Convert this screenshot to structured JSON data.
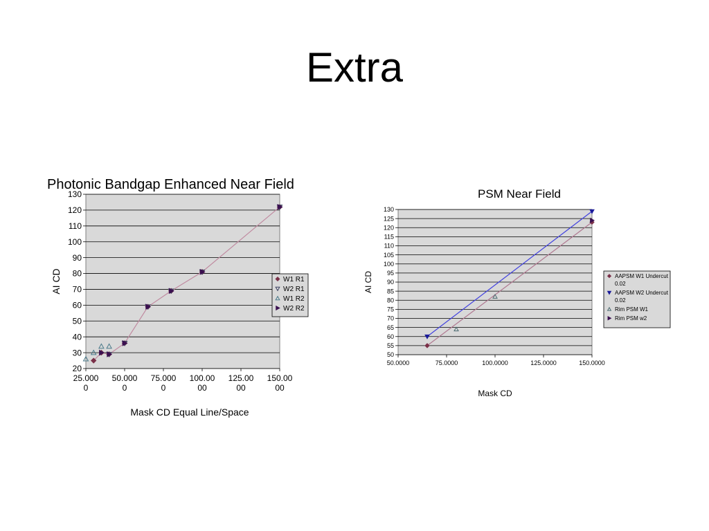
{
  "slide": {
    "title": "Extra"
  },
  "chart_data": [
    {
      "type": "line",
      "title": "Photonic Bandgap Enhanced Near Field",
      "xlabel": "Mask CD Equal Line/Space",
      "ylabel": "AI CD",
      "xlim": [
        25,
        150
      ],
      "ylim": [
        20,
        130
      ],
      "x_ticks": [
        {
          "value": 25,
          "line1": "25.000",
          "line2": "0"
        },
        {
          "value": 50,
          "line1": "50.000",
          "line2": "0"
        },
        {
          "value": 75,
          "line1": "75.000",
          "line2": "0"
        },
        {
          "value": 100,
          "line1": "100.00",
          "line2": "00"
        },
        {
          "value": 125,
          "line1": "125.00",
          "line2": "00"
        },
        {
          "value": 150,
          "line1": "150.00",
          "line2": "00"
        }
      ],
      "y_ticks": [
        20,
        30,
        40,
        50,
        60,
        70,
        80,
        90,
        100,
        110,
        120,
        130
      ],
      "grid": "horizontal",
      "plot_background": "#d9d9d9",
      "legend_position": "right",
      "series": [
        {
          "name": "W1 R1",
          "marker": "diamond",
          "color": "#7a3048",
          "line": true,
          "line_color": "#c08aa0",
          "x": [
            30,
            35,
            40,
            50,
            65,
            80,
            100,
            150
          ],
          "y": [
            25,
            30,
            29,
            36,
            59,
            69,
            81,
            122
          ]
        },
        {
          "name": "W2 R1",
          "marker": "triangle-down",
          "color": "#3a4060",
          "line": false,
          "x": [
            40,
            50,
            65,
            80,
            100,
            150
          ],
          "y": [
            29,
            36,
            59,
            69,
            81,
            122
          ]
        },
        {
          "name": "W1 R2",
          "marker": "triangle-up",
          "color": "#4a7a8a",
          "line": false,
          "x": [
            25,
            30,
            35,
            40
          ],
          "y": [
            26,
            30,
            34,
            34
          ]
        },
        {
          "name": "W2 R2",
          "marker": "triangle-right",
          "color": "#3a1050",
          "line": false,
          "x": [
            35,
            40,
            50,
            65,
            80,
            100,
            150
          ],
          "y": [
            30,
            29,
            36,
            59,
            69,
            81,
            122
          ]
        }
      ]
    },
    {
      "type": "line",
      "title": "PSM Near Field",
      "xlabel": "Mask CD",
      "ylabel": "AI CD",
      "xlim": [
        50,
        150
      ],
      "ylim": [
        50,
        130
      ],
      "x_ticks": [
        {
          "value": 50,
          "label": "50.0000"
        },
        {
          "value": 75,
          "label": "75.0000"
        },
        {
          "value": 100,
          "label": "100.0000"
        },
        {
          "value": 125,
          "label": "125.0000"
        },
        {
          "value": 150,
          "label": "150.0000"
        }
      ],
      "y_ticks": [
        50,
        55,
        60,
        65,
        70,
        75,
        80,
        85,
        90,
        95,
        100,
        105,
        110,
        115,
        120,
        125,
        130
      ],
      "grid": "horizontal",
      "plot_background": "#d9d9d9",
      "legend_position": "right",
      "series": [
        {
          "name": "AAPSM W1 Undercut 0.02",
          "legend_lines": [
            "AAPSM W1 Undercut",
            "0.02"
          ],
          "marker": "diamond",
          "color": "#7a3048",
          "line": true,
          "line_color": "#b07890",
          "x": [
            65,
            150
          ],
          "y": [
            55,
            123
          ]
        },
        {
          "name": "AAPSM W2 Undercut 0.02",
          "legend_lines": [
            "AAPSM W2 Undercut",
            "0.02"
          ],
          "marker": "triangle-down",
          "color": "#1a1a9a",
          "line": true,
          "line_color": "#4040e0",
          "x": [
            65,
            150
          ],
          "y": [
            60,
            129
          ]
        },
        {
          "name": "Rim PSM W1",
          "legend_lines": [
            "Rim PSM W1"
          ],
          "marker": "triangle-up",
          "color": "#4a6a70",
          "line": false,
          "x": [
            80,
            100
          ],
          "y": [
            64,
            82
          ]
        },
        {
          "name": "Rim PSM w2",
          "legend_lines": [
            "Rim PSM w2"
          ],
          "marker": "triangle-right",
          "color": "#3a1050",
          "line": false,
          "x": [
            150
          ],
          "y": [
            124
          ]
        }
      ]
    }
  ]
}
